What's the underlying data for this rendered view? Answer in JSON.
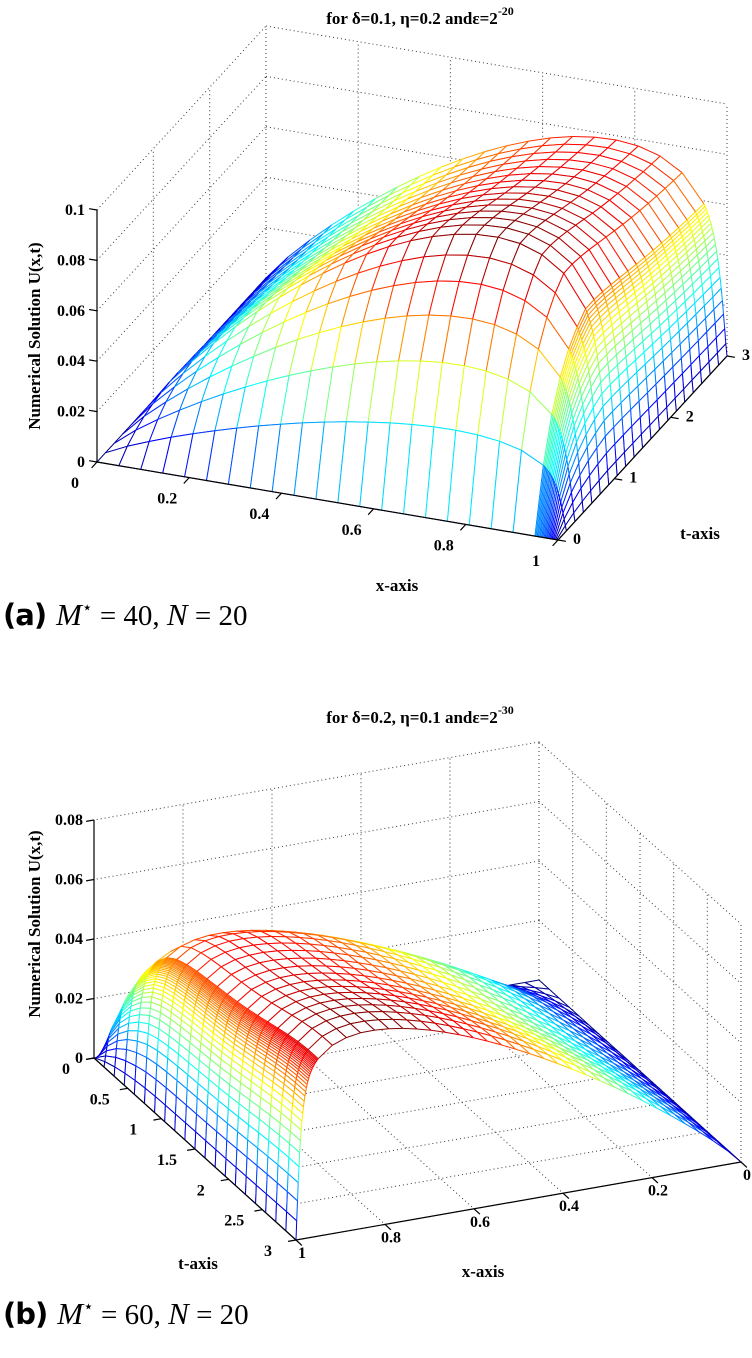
{
  "figure": {
    "background": "#ffffff",
    "grid_color": "#3a3a3a",
    "axis_color": "#000000",
    "panels": [
      {
        "id": "a",
        "title": {
          "text": "for δ=0.1, η=0.2 andε=2",
          "exponent": "-20"
        },
        "axis_labels": {
          "x": "x-axis",
          "t": "t-axis",
          "z": "Numerical Solution U(x,t)"
        },
        "tick_labels": {
          "x": [
            "0",
            "0.2",
            "0.4",
            "0.6",
            "0.8",
            "1"
          ],
          "t": [
            "0",
            "1",
            "2",
            "3"
          ],
          "z": [
            "0",
            "0.02",
            "0.04",
            "0.06",
            "0.08",
            "0.1"
          ]
        },
        "caption": {
          "label": "(a)",
          "m": "M",
          "m_sup": "⋆",
          "m_eq": " = 40, ",
          "n": "N",
          "n_eq": " = 20"
        }
      },
      {
        "id": "b",
        "title": {
          "text": "for δ=0.2, η=0.1 andε=2",
          "exponent": "-30"
        },
        "axis_labels": {
          "x": "x-axis",
          "t": "t-axis",
          "z": "Numerical Solution U(x,t)"
        },
        "tick_labels": {
          "x": [
            "0",
            "0.2",
            "0.4",
            "0.6",
            "0.8",
            "1"
          ],
          "t": [
            "0",
            "0.5",
            "1",
            "1.5",
            "2",
            "2.5",
            "3"
          ],
          "z": [
            "0",
            "0.02",
            "0.04",
            "0.06",
            "0.08"
          ]
        },
        "caption": {
          "label": "(b)",
          "m": "M",
          "m_sup": "⋆",
          "m_eq": " = 60, ",
          "n": "N",
          "n_eq": " = 20"
        }
      }
    ]
  },
  "chart_data": [
    {
      "type": "surface-mesh-3d",
      "panel": "a",
      "title": "for δ=0.1, η=0.2 and ε=2^-20",
      "xlabel": "x-axis",
      "ylabel": "t-axis",
      "zlabel": "Numerical Solution U(x,t)",
      "x_range": [
        0,
        1
      ],
      "t_range": [
        0,
        3
      ],
      "z_range": [
        0,
        0.1
      ],
      "x_tick_values": [
        0,
        0.2,
        0.4,
        0.6,
        0.8,
        1
      ],
      "t_tick_values": [
        0,
        1,
        2,
        3
      ],
      "z_tick_values": [
        0,
        0.02,
        0.04,
        0.06,
        0.08,
        0.1
      ],
      "peak_value": 0.091,
      "mesh": {
        "x_intervals": 40,
        "t_intervals": 20,
        "shishkin_transition": 0.95,
        "note": "M*=40 spatial intervals, half graded into boundary layer at x=1; N=20 time intervals"
      },
      "surface_model": {
        "x_exponent": 0.9,
        "x_decay_exponent": 0.3,
        "layer_width": 0.012,
        "rise_rate": 2.6,
        "decay_depth": 0.26,
        "decay_rate": 0.9,
        "decay_start": 0.9,
        "late_bump": 0,
        "late_center": 3,
        "late_width": 1
      },
      "boundary": "U=0 at x=0, x=1 and t=0; boundary layer at x=1",
      "colormap": "jet",
      "grid": true,
      "view": "azimuth -37.5, elevation 30 (x-axis front-left, t-axis front-right)"
    },
    {
      "type": "surface-mesh-3d",
      "panel": "b",
      "title": "for δ=0.2, η=0.1 and ε=2^-30",
      "xlabel": "x-axis",
      "ylabel": "t-axis",
      "zlabel": "Numerical Solution U(x,t)",
      "x_range": [
        0,
        1
      ],
      "t_range": [
        0,
        3
      ],
      "z_range": [
        0,
        0.08
      ],
      "x_tick_values": [
        0,
        0.2,
        0.4,
        0.6,
        0.8,
        1
      ],
      "t_tick_values": [
        0,
        0.5,
        1,
        1.5,
        2,
        2.5,
        3
      ],
      "z_tick_values": [
        0,
        0.02,
        0.04,
        0.06,
        0.08
      ],
      "peak_value": 0.066,
      "mesh": {
        "x_intervals": 60,
        "t_intervals": 20,
        "shishkin_transition": 0.95,
        "note": "M*=60 spatial intervals, half graded into boundary layer at x=1; N=20 time intervals"
      },
      "surface_model": {
        "x_exponent": 0.9,
        "x_decay_exponent": 0.18,
        "layer_width": 0.008,
        "rise_rate": 2.2,
        "decay_depth": 0.16,
        "decay_rate": 1.0,
        "decay_start": 0.8,
        "late_bump": 0.18,
        "late_center": 3,
        "late_width": 1
      },
      "boundary": "U=0 at x=0, x=1 and t=0; boundary layer at x=1",
      "colormap": "jet",
      "grid": true,
      "view": "mirrored azimuth (t-axis front-left, x-axis front-right, x reversed)"
    }
  ]
}
